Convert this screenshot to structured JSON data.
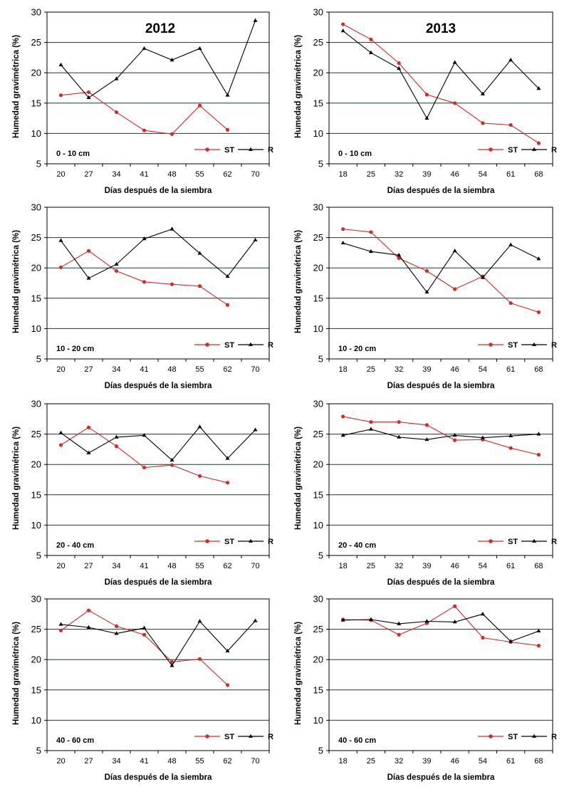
{
  "figure": {
    "ylabel": "Humedad gravimétrica  (%)",
    "xlabel": "Días  después de la siembra",
    "legend": {
      "series_1": "ST",
      "series_2": "R",
      "placement": "bottom-right"
    },
    "colors": {
      "ST": "#d42a2a",
      "R": "#000000",
      "grid": "#1a3a33",
      "axis": "#000000"
    }
  },
  "chart_data": [
    {
      "type": "line",
      "year": "2012",
      "depth": "0 - 10 cm",
      "x": [
        "20",
        "27",
        "34",
        "41",
        "48",
        "55",
        "62",
        "70"
      ],
      "ylim": [
        5,
        30
      ],
      "yticks": [
        5,
        10,
        15,
        20,
        25,
        30
      ],
      "grid": true,
      "series": [
        {
          "name": "ST",
          "values": [
            16.3,
            16.8,
            13.5,
            10.5,
            9.9,
            14.6,
            10.6,
            null
          ]
        },
        {
          "name": "R",
          "values": [
            21.3,
            15.9,
            19.0,
            24.0,
            22.1,
            24.0,
            16.3,
            28.6
          ]
        }
      ]
    },
    {
      "type": "line",
      "year": "2013",
      "depth": "0 - 10 cm",
      "x": [
        "18",
        "25",
        "32",
        "39",
        "46",
        "54",
        "61",
        "68"
      ],
      "ylim": [
        5,
        30
      ],
      "yticks": [
        5,
        10,
        15,
        20,
        25,
        30
      ],
      "grid": true,
      "series": [
        {
          "name": "ST",
          "values": [
            28.0,
            25.5,
            21.6,
            16.4,
            15.0,
            11.7,
            11.4,
            8.4
          ]
        },
        {
          "name": "R",
          "values": [
            26.9,
            23.3,
            20.7,
            12.5,
            21.7,
            16.5,
            22.1,
            17.4
          ]
        }
      ]
    },
    {
      "type": "line",
      "year": "",
      "depth": "10 - 20 cm",
      "x": [
        "20",
        "27",
        "34",
        "41",
        "48",
        "55",
        "62",
        "70"
      ],
      "ylim": [
        5,
        30
      ],
      "yticks": [
        5,
        10,
        15,
        20,
        25,
        30
      ],
      "grid": true,
      "series": [
        {
          "name": "ST",
          "values": [
            20.1,
            22.8,
            19.5,
            17.7,
            17.3,
            17.0,
            13.9,
            null
          ]
        },
        {
          "name": "R",
          "values": [
            24.5,
            18.3,
            20.6,
            24.8,
            26.4,
            22.4,
            18.6,
            24.6
          ]
        }
      ]
    },
    {
      "type": "line",
      "year": "",
      "depth": "10 - 20 cm",
      "x": [
        "18",
        "25",
        "32",
        "39",
        "46",
        "54",
        "61",
        "68"
      ],
      "ylim": [
        5,
        30
      ],
      "yticks": [
        5,
        10,
        15,
        20,
        25,
        30
      ],
      "grid": true,
      "series": [
        {
          "name": "ST",
          "values": [
            26.4,
            25.9,
            21.6,
            19.5,
            16.5,
            18.6,
            14.2,
            12.7
          ]
        },
        {
          "name": "R",
          "values": [
            24.1,
            22.7,
            22.1,
            16.0,
            22.8,
            18.4,
            23.8,
            21.5
          ]
        }
      ]
    },
    {
      "type": "line",
      "year": "",
      "depth": "20 - 40 cm",
      "x": [
        "20",
        "27",
        "34",
        "41",
        "48",
        "55",
        "62",
        "70"
      ],
      "ylim": [
        5,
        30
      ],
      "yticks": [
        5,
        10,
        15,
        20,
        25,
        30
      ],
      "grid": true,
      "series": [
        {
          "name": "ST",
          "values": [
            23.2,
            26.1,
            23.0,
            19.5,
            19.9,
            18.1,
            17.0,
            null
          ]
        },
        {
          "name": "R",
          "values": [
            25.2,
            21.9,
            24.5,
            24.8,
            20.7,
            26.2,
            21.0,
            25.7
          ]
        }
      ]
    },
    {
      "type": "line",
      "year": "",
      "depth": "20 - 40 cm",
      "x": [
        "18",
        "25",
        "32",
        "39",
        "46",
        "54",
        "61",
        "68"
      ],
      "ylim": [
        5,
        30
      ],
      "yticks": [
        5,
        10,
        15,
        20,
        25,
        30
      ],
      "grid": true,
      "series": [
        {
          "name": "ST",
          "values": [
            27.9,
            27.0,
            27.0,
            26.5,
            24.0,
            24.1,
            22.7,
            21.6
          ]
        },
        {
          "name": "R",
          "values": [
            24.8,
            25.8,
            24.5,
            24.1,
            24.8,
            24.4,
            24.7,
            25.0
          ]
        }
      ]
    },
    {
      "type": "line",
      "year": "",
      "depth": "40 - 60 cm",
      "x": [
        "20",
        "27",
        "34",
        "41",
        "48",
        "55",
        "62",
        "70"
      ],
      "ylim": [
        5,
        30
      ],
      "yticks": [
        5,
        10,
        15,
        20,
        25,
        30
      ],
      "grid": true,
      "series": [
        {
          "name": "ST",
          "values": [
            24.8,
            28.1,
            25.5,
            24.1,
            19.6,
            20.1,
            15.8,
            null
          ]
        },
        {
          "name": "R",
          "values": [
            25.8,
            25.3,
            24.3,
            25.2,
            19.0,
            26.3,
            21.4,
            26.4
          ]
        }
      ]
    },
    {
      "type": "line",
      "year": "",
      "depth": "40 - 60 cm",
      "x": [
        "18",
        "25",
        "32",
        "39",
        "46",
        "54",
        "61",
        "68"
      ],
      "ylim": [
        5,
        30
      ],
      "yticks": [
        5,
        10,
        15,
        20,
        25,
        30
      ],
      "grid": true,
      "series": [
        {
          "name": "ST",
          "values": [
            26.6,
            26.5,
            24.1,
            26.0,
            28.8,
            23.6,
            22.9,
            22.3
          ]
        },
        {
          "name": "R",
          "values": [
            26.5,
            26.6,
            25.9,
            26.3,
            26.2,
            27.5,
            23.0,
            24.7
          ]
        }
      ]
    }
  ]
}
